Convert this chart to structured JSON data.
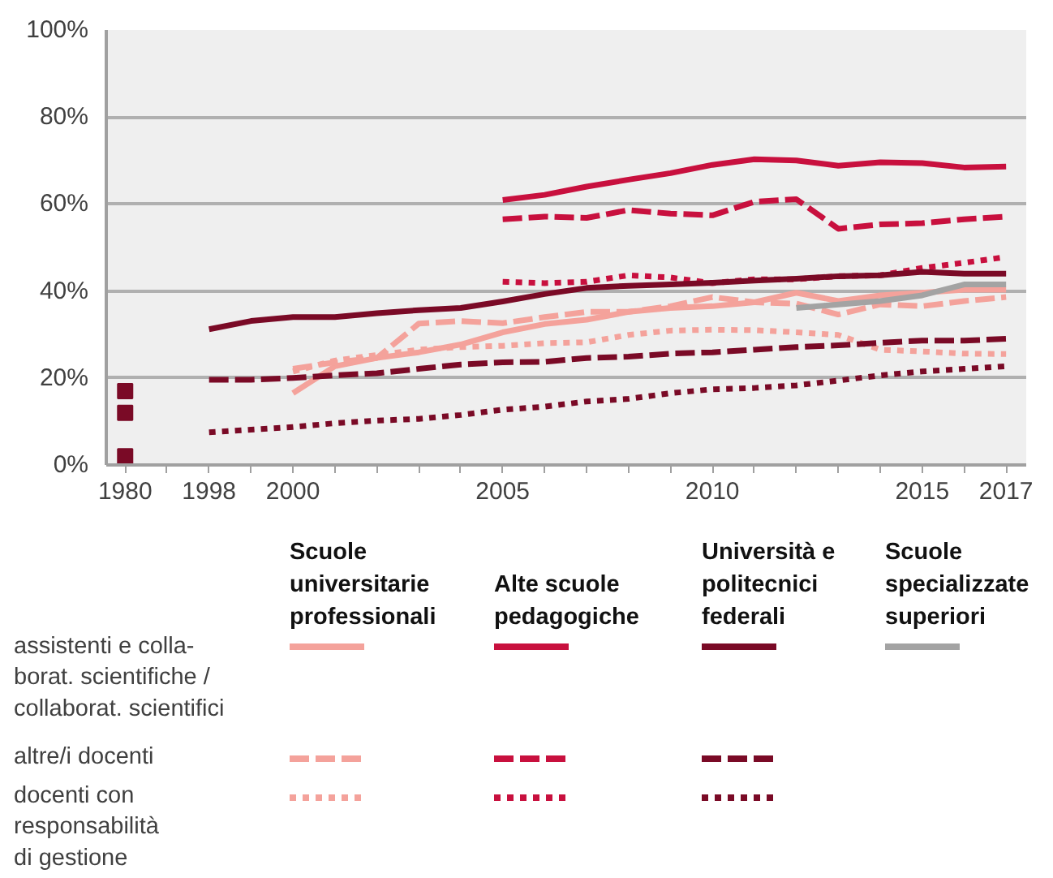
{
  "chart_data": {
    "type": "line",
    "categories": [
      "1980",
      null,
      "1998",
      null,
      "2000",
      null,
      null,
      null,
      null,
      "2005",
      null,
      null,
      null,
      null,
      "2010",
      null,
      null,
      null,
      null,
      "2015",
      null,
      "2017"
    ],
    "ylim": [
      0,
      100
    ],
    "yticks": [
      {
        "value": 0,
        "label": "0%"
      },
      {
        "value": 20,
        "label": "20%"
      },
      {
        "value": 40,
        "label": "40%"
      },
      {
        "value": 60,
        "label": "60%"
      },
      {
        "value": 80,
        "label": "80%"
      },
      {
        "value": 100,
        "label": "100%"
      }
    ],
    "grid": "y",
    "annotations": [
      "Scuole\nuniversitarie\nprofessionali",
      "Alte scuole\npedagogiche",
      "Università e\npolitecnici\nfederali",
      "Scuole\nspecializzate\nsuperiori",
      "assistenti e colla-\nborat. scientifiche /\ncollaborat. scientifici",
      "altre/i docenti",
      "docenti con\nresponsabilità\ndi gestione"
    ],
    "series": [
      {
        "color": "#f4a29b",
        "line_style": "solid",
        "values": [
          null,
          null,
          null,
          null,
          16.5,
          22.7,
          24.6,
          25.9,
          27.7,
          30.5,
          32.4,
          33.4,
          35.2,
          36.1,
          36.5,
          37.4,
          39.6,
          37.7,
          39.0,
          39.6,
          40.3,
          40.3
        ]
      },
      {
        "color": "#f4a29b",
        "line_style": "dashed",
        "values": [
          null,
          null,
          null,
          null,
          22.1,
          23.6,
          24.6,
          32.5,
          33.1,
          32.6,
          34.0,
          35.2,
          35.2,
          36.5,
          38.6,
          37.4,
          37.1,
          34.6,
          36.9,
          36.5,
          37.7,
          38.6
        ]
      },
      {
        "color": "#f4a29b",
        "line_style": "dotted",
        "values": [
          null,
          null,
          null,
          null,
          21.5,
          24.0,
          25.3,
          26.5,
          27.1,
          27.4,
          28.0,
          28.2,
          29.9,
          30.9,
          31.1,
          31.0,
          30.5,
          29.9,
          26.5,
          26.1,
          25.6,
          25.5
        ]
      },
      {
        "color": "#c8103e",
        "line_style": "solid",
        "values": [
          null,
          null,
          null,
          null,
          null,
          null,
          null,
          null,
          null,
          60.9,
          62.1,
          64.0,
          65.6,
          67.1,
          69.0,
          70.3,
          70.0,
          68.8,
          69.6,
          69.4,
          68.4,
          68.6
        ]
      },
      {
        "color": "#c8103e",
        "line_style": "dashed",
        "values": [
          null,
          null,
          null,
          null,
          null,
          null,
          null,
          null,
          null,
          56.5,
          57.1,
          56.8,
          58.6,
          57.8,
          57.4,
          60.5,
          61.1,
          54.3,
          55.3,
          55.6,
          56.5,
          57.1
        ]
      },
      {
        "color": "#c8103e",
        "line_style": "dotted",
        "values": [
          null,
          null,
          null,
          null,
          null,
          null,
          null,
          null,
          null,
          42.1,
          41.8,
          42.1,
          43.6,
          43.1,
          41.8,
          42.7,
          42.7,
          43.4,
          43.6,
          45.3,
          46.5,
          47.8
        ]
      },
      {
        "color": "#7a0a26",
        "line_style": "solid",
        "values": [
          null,
          null,
          31.2,
          33.1,
          34.0,
          34.0,
          34.9,
          35.6,
          36.1,
          37.6,
          39.3,
          40.7,
          41.2,
          41.5,
          41.9,
          42.4,
          42.8,
          43.4,
          43.6,
          44.4,
          44.0,
          44.0
        ]
      },
      {
        "color": "#7a0a26",
        "line_style": "dashed",
        "values": [
          null,
          null,
          19.6,
          19.6,
          20.0,
          20.6,
          21.1,
          22.1,
          23.1,
          23.6,
          23.7,
          24.6,
          24.9,
          25.6,
          25.9,
          26.5,
          27.1,
          27.5,
          28.1,
          28.6,
          28.6,
          29.0
        ]
      },
      {
        "color": "#7a0a26",
        "line_style": "dotted",
        "values": [
          null,
          null,
          7.5,
          8.1,
          8.7,
          9.6,
          10.2,
          10.6,
          11.5,
          12.7,
          13.4,
          14.6,
          15.2,
          16.5,
          17.4,
          17.7,
          18.3,
          19.4,
          20.6,
          21.5,
          22.1,
          22.7
        ]
      },
      {
        "color": "#a3a3a3",
        "line_style": "solid",
        "values": [
          null,
          null,
          null,
          null,
          null,
          null,
          null,
          null,
          null,
          null,
          null,
          null,
          null,
          null,
          null,
          null,
          36.1,
          36.9,
          37.7,
          39.0,
          41.5,
          41.5
        ]
      },
      {
        "type": "scatter",
        "marker": "square",
        "color": "#7a0a26",
        "values": [
          17,
          null,
          null,
          null,
          null,
          null,
          null,
          null,
          null,
          null,
          null,
          null,
          null,
          null,
          null,
          null,
          null,
          null,
          null,
          null,
          null,
          null
        ]
      },
      {
        "type": "scatter",
        "marker": "square",
        "color": "#7a0a26",
        "values": [
          12,
          null,
          null,
          null,
          null,
          null,
          null,
          null,
          null,
          null,
          null,
          null,
          null,
          null,
          null,
          null,
          null,
          null,
          null,
          null,
          null,
          null
        ]
      },
      {
        "type": "scatter",
        "marker": "square",
        "color": "#7a0a26",
        "values": [
          2,
          null,
          null,
          null,
          null,
          null,
          null,
          null,
          null,
          null,
          null,
          null,
          null,
          null,
          null,
          null,
          null,
          null,
          null,
          null,
          null,
          null
        ]
      }
    ]
  }
}
